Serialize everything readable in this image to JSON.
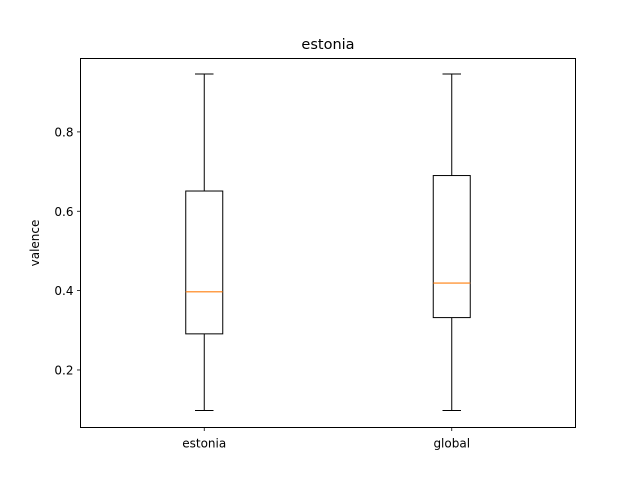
{
  "chart_data": {
    "type": "box",
    "title": "estonia",
    "xlabel": "",
    "ylabel": "valence",
    "ylim": [
      0.055,
      0.985
    ],
    "yticks": [
      0.2,
      0.4,
      0.6,
      0.8
    ],
    "ytick_labels": [
      "0.2",
      "0.4",
      "0.6",
      "0.8"
    ],
    "categories": [
      "estonia",
      "global"
    ],
    "boxes": [
      {
        "category": "estonia",
        "whisker_low": 0.098,
        "q1": 0.291,
        "median": 0.397,
        "q3": 0.651,
        "whisker_high": 0.946
      },
      {
        "category": "global",
        "whisker_low": 0.098,
        "q1": 0.332,
        "median": 0.419,
        "q3": 0.69,
        "whisker_high": 0.946
      }
    ],
    "colors": {
      "box": "#000000",
      "median": "#ff7f0e"
    },
    "grid": false,
    "legend": "none"
  }
}
